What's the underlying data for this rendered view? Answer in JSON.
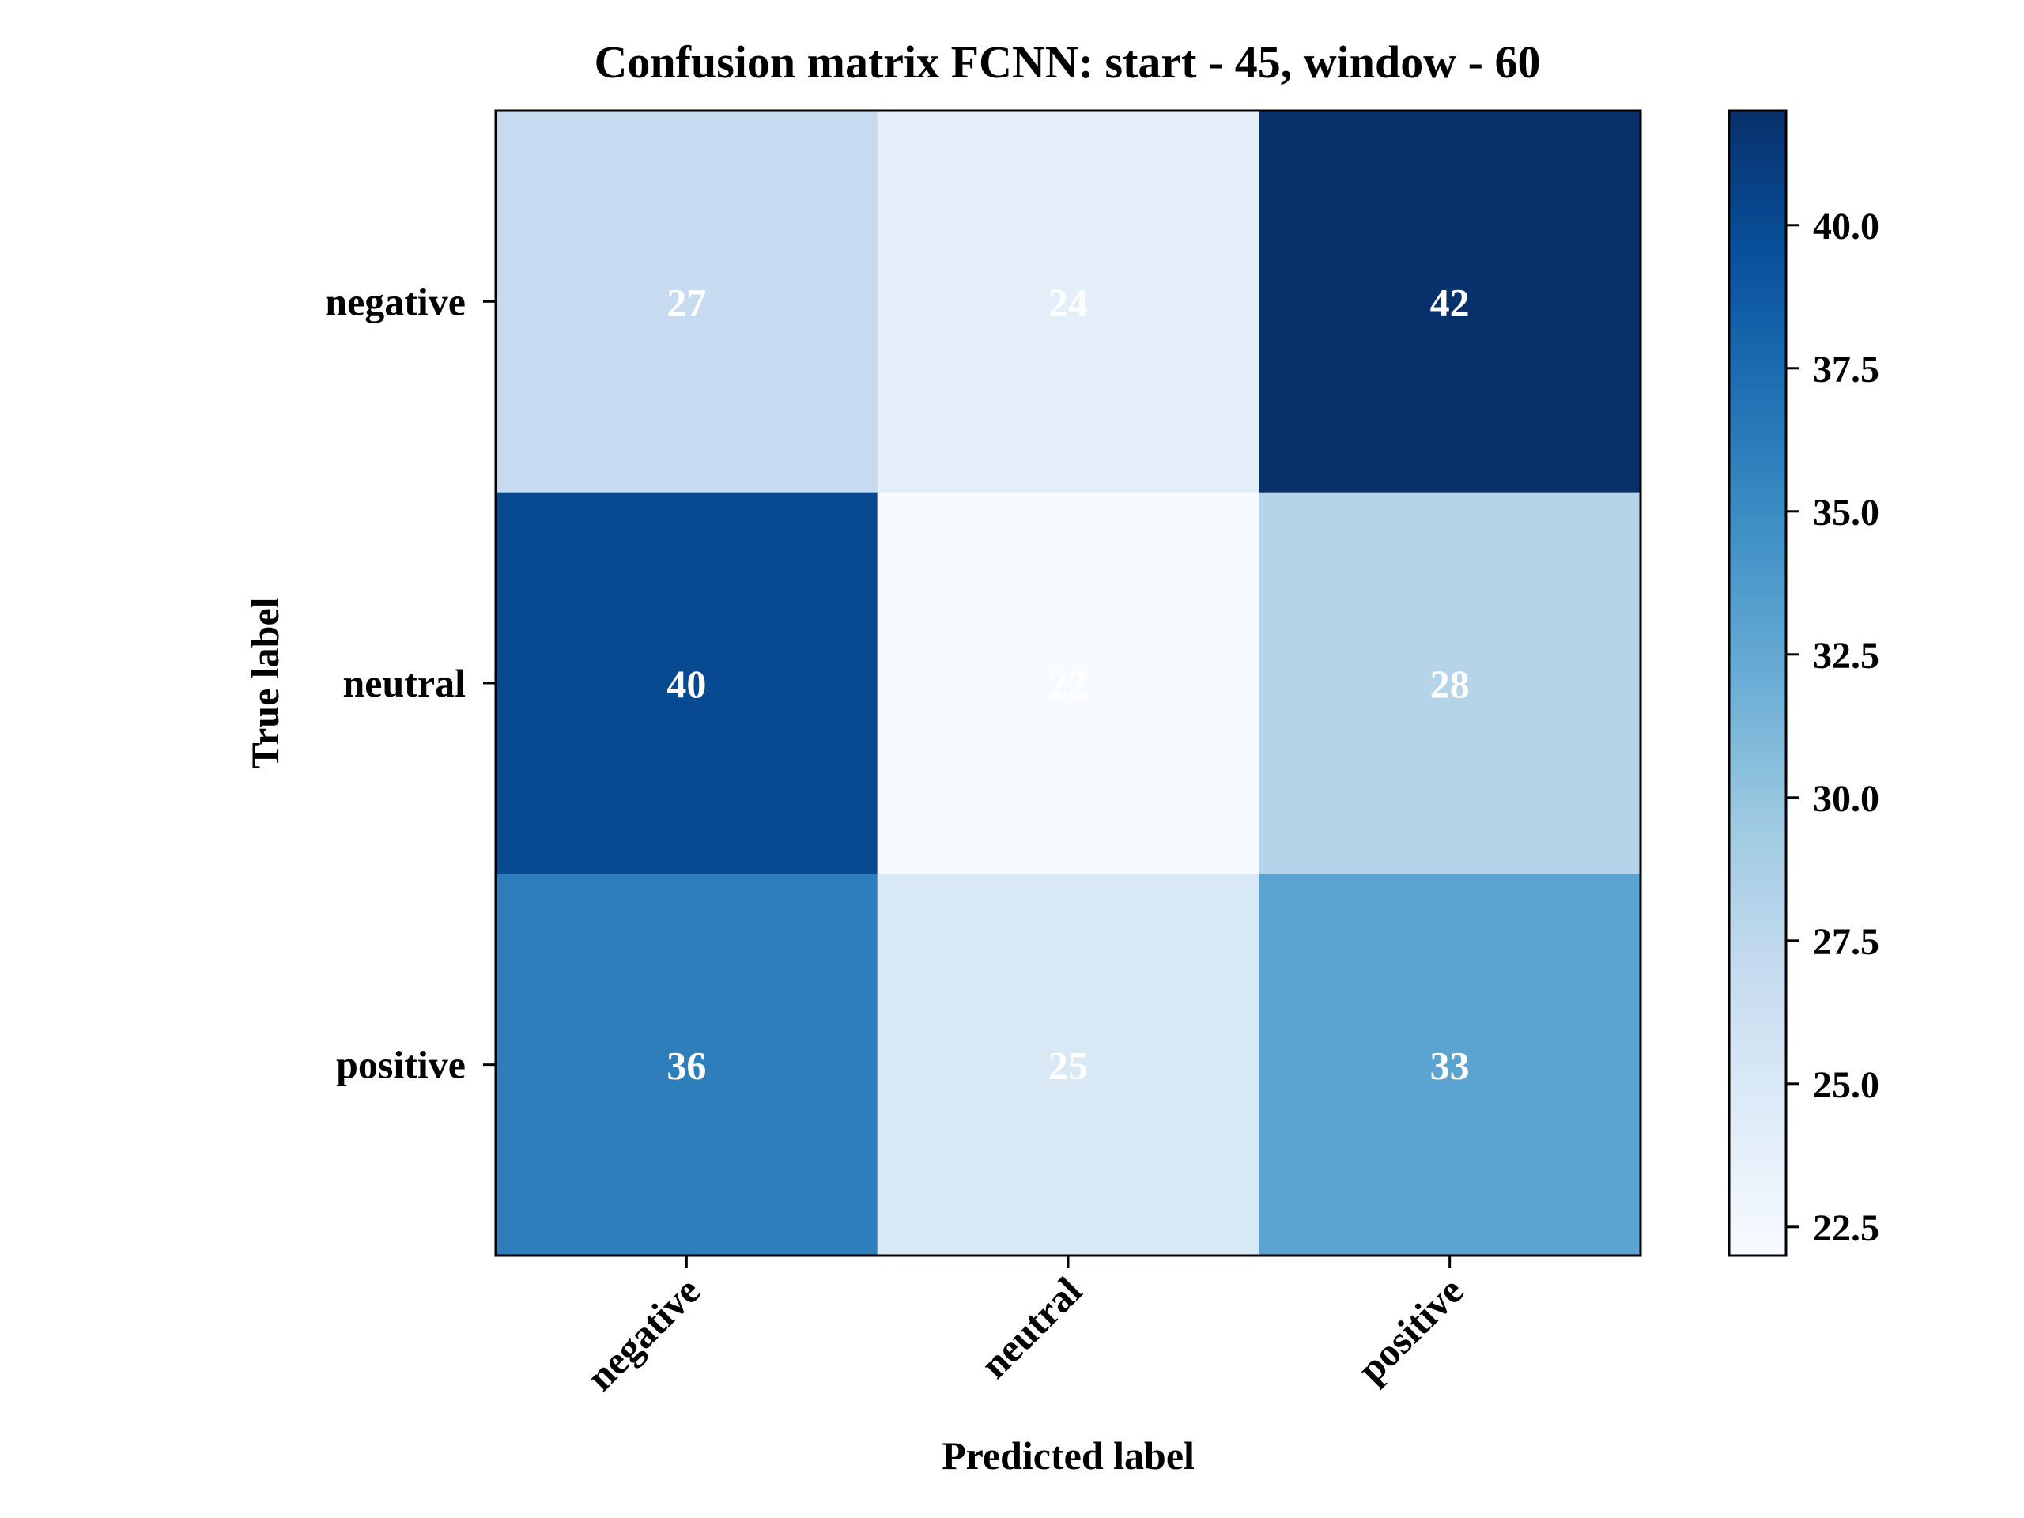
{
  "chart_data": {
    "type": "heatmap",
    "title": "Confusion matrix FCNN: start - 45, window - 60",
    "xlabel": "Predicted label",
    "ylabel": "True label",
    "x_categories": [
      "negative",
      "neutral",
      "positive"
    ],
    "y_categories": [
      "negative",
      "neutral",
      "positive"
    ],
    "values": [
      [
        27,
        24,
        42
      ],
      [
        40,
        22,
        28
      ],
      [
        36,
        25,
        33
      ]
    ],
    "colormap": "Blues",
    "vmin": 22,
    "vmax": 42,
    "colorbar_ticks": [
      22.5,
      25.0,
      27.5,
      30.0,
      32.5,
      35.0,
      37.5,
      40.0
    ],
    "colorbar_tick_labels": [
      "22.5",
      "25.0",
      "27.5",
      "30.0",
      "32.5",
      "35.0",
      "37.5",
      "40.0"
    ],
    "colorbar_stops": [
      "#f7fbff",
      "#deebf7",
      "#c6dbef",
      "#9ecae1",
      "#6baed6",
      "#4292c6",
      "#2171b5",
      "#08519c",
      "#08306b"
    ],
    "cell_text_color": "#ffffff",
    "grid": false,
    "legend": "colorbar-right"
  }
}
